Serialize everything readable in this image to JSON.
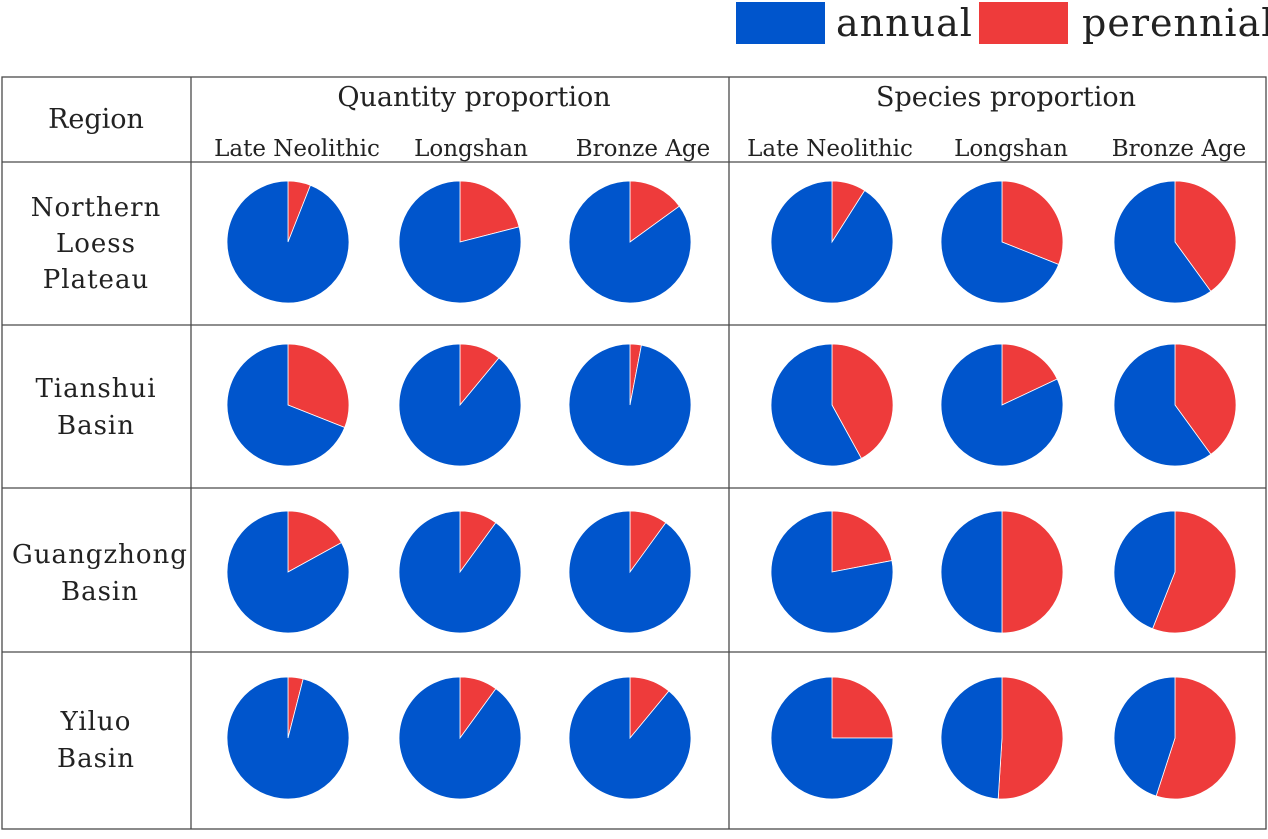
{
  "chart_data": {
    "type": "pie",
    "legend": [
      {
        "label": "annual",
        "color": "#0055cc"
      },
      {
        "label": "perennial",
        "color": "#ee3b3b"
      }
    ],
    "legend_position": "top-right",
    "header": {
      "region_label": "Region",
      "groups": [
        {
          "title": "Quantity proportion",
          "periods": [
            "Late Neolithic",
            "Longshan",
            "Bronze Age"
          ]
        },
        {
          "title": "Species proportion",
          "periods": [
            "Late Neolithic",
            "Longshan",
            "Bronze Age"
          ]
        }
      ]
    },
    "rows": [
      {
        "region_lines": [
          "Northern",
          "Loess",
          "Plateau"
        ],
        "perennial_fraction": [
          0.06,
          0.21,
          0.15,
          0.09,
          0.31,
          0.4
        ]
      },
      {
        "region_lines": [
          "Tianshui",
          "Basin"
        ],
        "perennial_fraction": [
          0.31,
          0.11,
          0.03,
          0.42,
          0.18,
          0.4
        ]
      },
      {
        "region_lines": [
          "Guangzhong",
          "Basin"
        ],
        "perennial_fraction": [
          0.17,
          0.1,
          0.1,
          0.22,
          0.5,
          0.56
        ]
      },
      {
        "region_lines": [
          "Yiluo",
          "Basin"
        ],
        "perennial_fraction": [
          0.04,
          0.1,
          0.11,
          0.25,
          0.51,
          0.55
        ]
      }
    ]
  }
}
